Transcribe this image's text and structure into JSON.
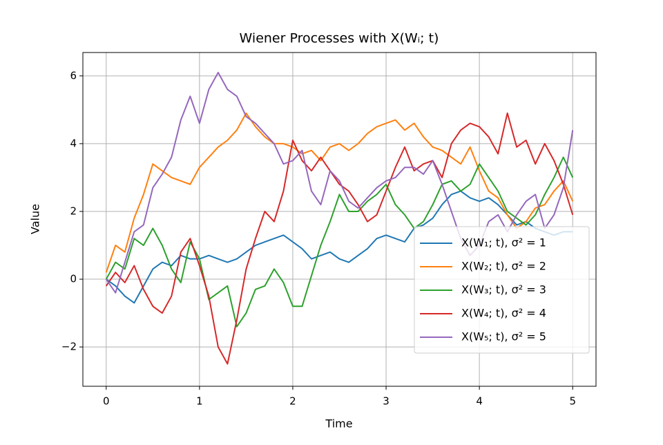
{
  "chart_data": {
    "type": "line",
    "title": "Wiener Processes with X(Wᵢ; t)",
    "xlabel": "Time",
    "ylabel": "Value",
    "x": [
      0,
      0.1,
      0.2,
      0.3,
      0.4,
      0.5,
      0.6,
      0.7,
      0.8,
      0.9,
      1,
      1.1,
      1.2,
      1.3,
      1.4,
      1.5,
      1.6,
      1.7,
      1.8,
      1.9,
      2,
      2.1,
      2.2,
      2.3,
      2.4,
      2.5,
      2.6,
      2.7,
      2.8,
      2.9,
      3,
      3.1,
      3.2,
      3.3,
      3.4,
      3.5,
      3.6,
      3.7,
      3.8,
      3.9,
      4,
      4.1,
      4.2,
      4.3,
      4.4,
      4.5,
      4.6,
      4.7,
      4.8,
      4.9,
      5
    ],
    "series": [
      {
        "name": "X(W₁; t), σ² = 1",
        "color": "#1f77b4",
        "values": [
          0,
          -0.2,
          -0.5,
          -0.7,
          -0.2,
          0.3,
          0.5,
          0.4,
          0.7,
          0.6,
          0.6,
          0.7,
          0.6,
          0.5,
          0.6,
          0.8,
          1.0,
          1.1,
          1.2,
          1.3,
          1.1,
          0.9,
          0.6,
          0.7,
          0.8,
          0.6,
          0.5,
          0.7,
          0.9,
          1.2,
          1.3,
          1.2,
          1.1,
          1.5,
          1.6,
          1.8,
          2.2,
          2.5,
          2.6,
          2.4,
          2.3,
          2.4,
          2.2,
          1.9,
          1.6,
          1.7,
          1.5,
          1.4,
          1.3,
          1.4,
          1.4
        ]
      },
      {
        "name": "X(W₂; t), σ² = 2",
        "color": "#ff7f0e",
        "values": [
          0.2,
          1.0,
          0.8,
          1.8,
          2.5,
          3.4,
          3.2,
          3.0,
          2.9,
          2.8,
          3.3,
          3.6,
          3.9,
          4.1,
          4.4,
          4.9,
          4.5,
          4.2,
          4.0,
          4.0,
          3.9,
          3.7,
          3.8,
          3.5,
          3.9,
          4.0,
          3.8,
          4.0,
          4.3,
          4.5,
          4.6,
          4.7,
          4.4,
          4.6,
          4.2,
          3.9,
          3.8,
          3.6,
          3.4,
          3.9,
          3.2,
          2.6,
          2.4,
          1.9,
          1.5,
          1.7,
          2.1,
          2.2,
          2.6,
          2.9,
          2.3
        ]
      },
      {
        "name": "X(W₃; t), σ² = 3",
        "color": "#2ca02c",
        "values": [
          0,
          0.5,
          0.3,
          1.2,
          1.0,
          1.5,
          1.0,
          0.3,
          -0.1,
          1.1,
          0.6,
          -0.6,
          -0.4,
          -0.2,
          -1.4,
          -1.0,
          -0.3,
          -0.2,
          0.3,
          -0.1,
          -0.8,
          -0.8,
          0.1,
          1.0,
          1.7,
          2.5,
          2.0,
          2.0,
          2.3,
          2.5,
          2.8,
          2.2,
          1.9,
          1.5,
          1.7,
          2.2,
          2.8,
          2.9,
          2.6,
          2.8,
          3.4,
          3.0,
          2.6,
          2.0,
          1.8,
          1.6,
          1.9,
          2.5,
          3.0,
          3.6,
          3.0
        ]
      },
      {
        "name": "X(W₄; t), σ² = 4",
        "color": "#d62728",
        "values": [
          -0.2,
          0.2,
          -0.1,
          0.4,
          -0.3,
          -0.8,
          -1.0,
          -0.5,
          0.8,
          1.2,
          0.4,
          -0.5,
          -2.0,
          -2.5,
          -1.2,
          0.3,
          1.2,
          2.0,
          1.7,
          2.6,
          4.1,
          3.5,
          3.2,
          3.6,
          3.2,
          2.8,
          2.6,
          2.2,
          1.7,
          1.9,
          2.6,
          3.3,
          3.9,
          3.2,
          3.4,
          3.5,
          3.0,
          4.0,
          4.4,
          4.6,
          4.5,
          4.2,
          3.7,
          4.9,
          3.9,
          4.1,
          3.4,
          4.0,
          3.5,
          2.8,
          1.9
        ]
      },
      {
        "name": "X(W₅; t), σ² = 5",
        "color": "#9467bd",
        "values": [
          0,
          -0.4,
          0.5,
          1.4,
          1.6,
          2.7,
          3.1,
          3.6,
          4.7,
          5.4,
          4.6,
          5.6,
          6.1,
          5.6,
          5.4,
          4.8,
          4.6,
          4.3,
          4.0,
          3.4,
          3.5,
          3.8,
          2.6,
          2.2,
          3.2,
          2.9,
          2.3,
          2.1,
          2.4,
          2.7,
          2.9,
          3.0,
          3.3,
          3.3,
          3.1,
          3.5,
          2.8,
          2.0,
          1.2,
          0.7,
          1.0,
          1.7,
          1.9,
          1.4,
          1.9,
          2.3,
          2.5,
          1.5,
          1.9,
          2.7,
          4.4
        ]
      }
    ],
    "xlim": [
      -0.25,
      5.25
    ],
    "ylim": [
      -3.16,
      6.69
    ],
    "xticks": [
      0,
      1,
      2,
      3,
      4,
      5
    ],
    "yticks": [
      {
        "value": -2,
        "label": "−2"
      },
      0,
      2,
      4,
      6
    ],
    "grid": true,
    "legend": "lower right"
  }
}
